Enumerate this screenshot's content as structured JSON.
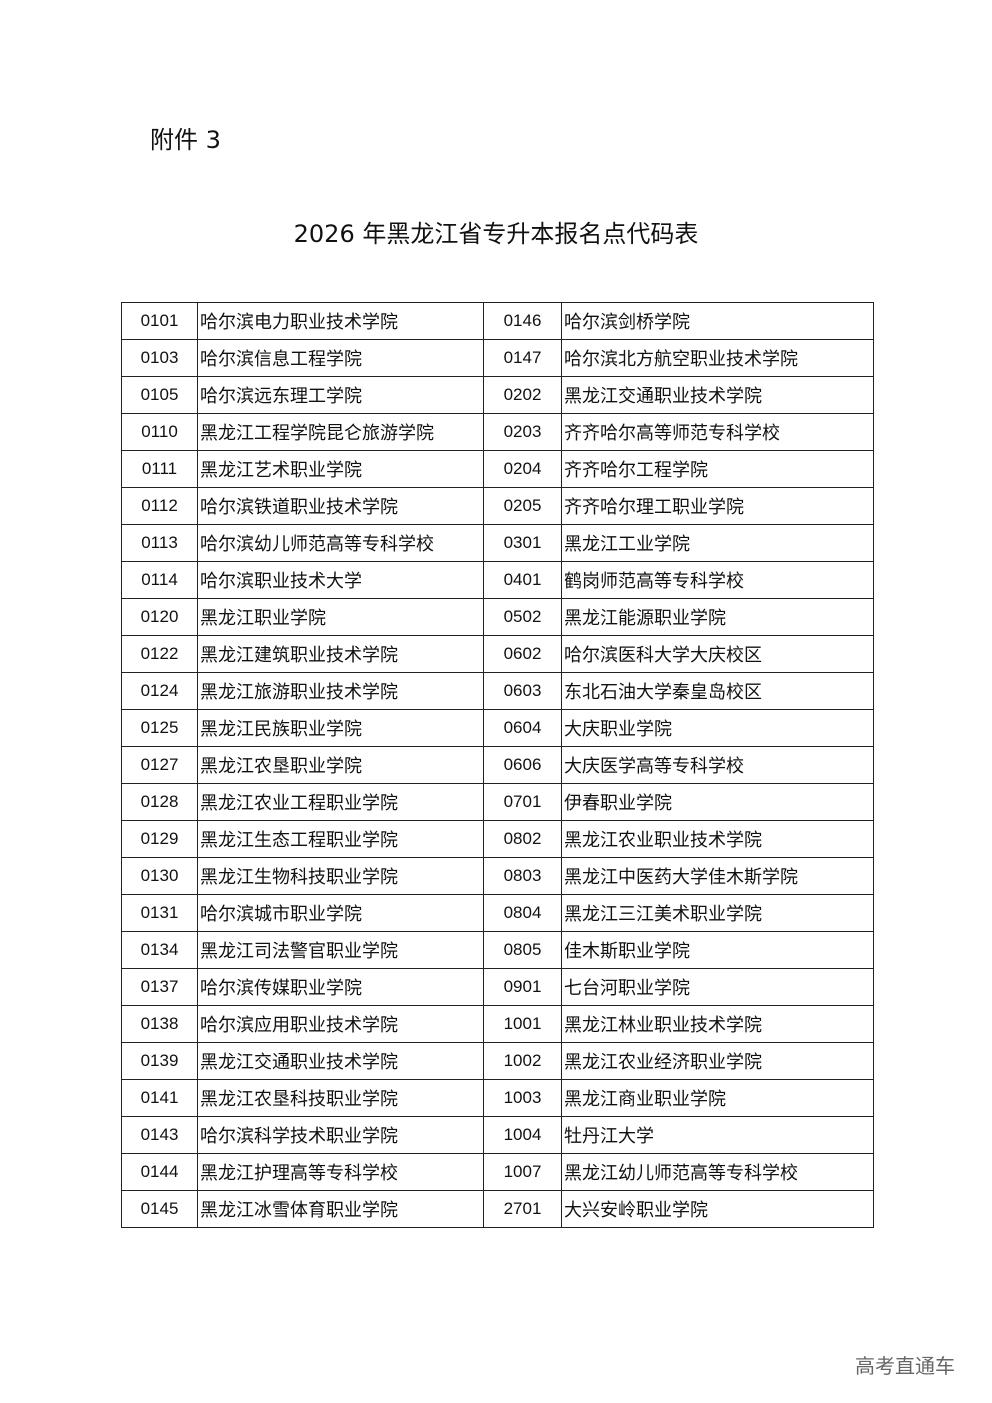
{
  "attachment_label": "附件 3",
  "title": "2026 年黑龙江省专升本报名点代码表",
  "rows": [
    {
      "c1": "0101",
      "n1": "哈尔滨电力职业技术学院",
      "c2": "0146",
      "n2": "哈尔滨剑桥学院"
    },
    {
      "c1": "0103",
      "n1": "哈尔滨信息工程学院",
      "c2": "0147",
      "n2": "哈尔滨北方航空职业技术学院"
    },
    {
      "c1": "0105",
      "n1": "哈尔滨远东理工学院",
      "c2": "0202",
      "n2": "黑龙江交通职业技术学院"
    },
    {
      "c1": "0110",
      "n1": "黑龙江工程学院昆仑旅游学院",
      "c2": "0203",
      "n2": "齐齐哈尔高等师范专科学校"
    },
    {
      "c1": "0111",
      "n1": "黑龙江艺术职业学院",
      "c2": "0204",
      "n2": "齐齐哈尔工程学院"
    },
    {
      "c1": "0112",
      "n1": "哈尔滨铁道职业技术学院",
      "c2": "0205",
      "n2": "齐齐哈尔理工职业学院"
    },
    {
      "c1": "0113",
      "n1": "哈尔滨幼儿师范高等专科学校",
      "c2": "0301",
      "n2": "黑龙江工业学院"
    },
    {
      "c1": "0114",
      "n1": "哈尔滨职业技术大学",
      "c2": "0401",
      "n2": "鹤岗师范高等专科学校"
    },
    {
      "c1": "0120",
      "n1": "黑龙江职业学院",
      "c2": "0502",
      "n2": "黑龙江能源职业学院"
    },
    {
      "c1": "0122",
      "n1": "黑龙江建筑职业技术学院",
      "c2": "0602",
      "n2": "哈尔滨医科大学大庆校区"
    },
    {
      "c1": "0124",
      "n1": "黑龙江旅游职业技术学院",
      "c2": "0603",
      "n2": "东北石油大学秦皇岛校区"
    },
    {
      "c1": "0125",
      "n1": "黑龙江民族职业学院",
      "c2": "0604",
      "n2": "大庆职业学院"
    },
    {
      "c1": "0127",
      "n1": "黑龙江农垦职业学院",
      "c2": "0606",
      "n2": "大庆医学高等专科学校"
    },
    {
      "c1": "0128",
      "n1": "黑龙江农业工程职业学院",
      "c2": "0701",
      "n2": "伊春职业学院"
    },
    {
      "c1": "0129",
      "n1": "黑龙江生态工程职业学院",
      "c2": "0802",
      "n2": "黑龙江农业职业技术学院"
    },
    {
      "c1": "0130",
      "n1": "黑龙江生物科技职业学院",
      "c2": "0803",
      "n2": "黑龙江中医药大学佳木斯学院"
    },
    {
      "c1": "0131",
      "n1": "哈尔滨城市职业学院",
      "c2": "0804",
      "n2": "黑龙江三江美术职业学院"
    },
    {
      "c1": "0134",
      "n1": "黑龙江司法警官职业学院",
      "c2": "0805",
      "n2": "佳木斯职业学院"
    },
    {
      "c1": "0137",
      "n1": "哈尔滨传媒职业学院",
      "c2": "0901",
      "n2": "七台河职业学院"
    },
    {
      "c1": "0138",
      "n1": "哈尔滨应用职业技术学院",
      "c2": "1001",
      "n2": "黑龙江林业职业技术学院"
    },
    {
      "c1": "0139",
      "n1": "黑龙江交通职业技术学院",
      "c2": "1002",
      "n2": "黑龙江农业经济职业学院"
    },
    {
      "c1": "0141",
      "n1": "黑龙江农垦科技职业学院",
      "c2": "1003",
      "n2": "黑龙江商业职业学院"
    },
    {
      "c1": "0143",
      "n1": "哈尔滨科学技术职业学院",
      "c2": "1004",
      "n2": "牡丹江大学"
    },
    {
      "c1": "0144",
      "n1": "黑龙江护理高等专科学校",
      "c2": "1007",
      "n2": "黑龙江幼儿师范高等专科学校"
    },
    {
      "c1": "0145",
      "n1": "黑龙江冰雪体育职业学院",
      "c2": "2701",
      "n2": "大兴安岭职业学院"
    }
  ],
  "watermark": "高考直通车"
}
